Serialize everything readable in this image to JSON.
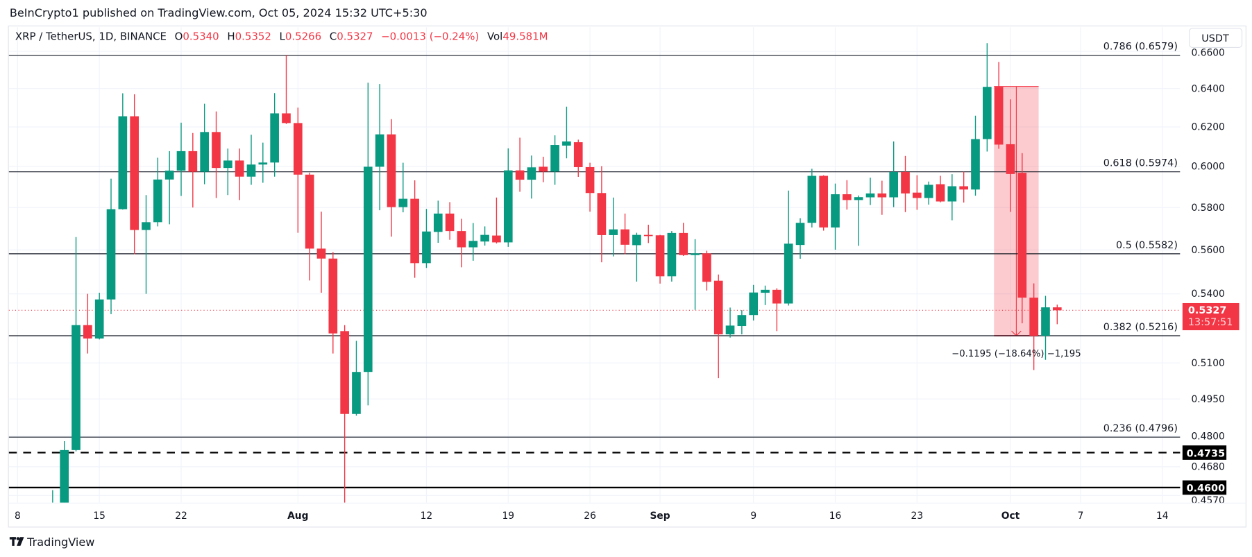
{
  "header": {
    "published": "BeInCrypto1 published on TradingView.com, Oct 05, 2024 15:32 UTC+5:30"
  },
  "legend": {
    "symbol": "XRP / TetherUS, 1D, BINANCE",
    "o_label": "O",
    "o_value": "0.5340",
    "h_label": "H",
    "h_value": "0.5352",
    "l_label": "L",
    "l_value": "0.5266",
    "c_label": "C",
    "c_value": "0.5327",
    "change": "−0.0013 (−0.24%)",
    "vol_label": "Vol",
    "vol_value": "49.581M"
  },
  "currency_button": "USDT",
  "footer": {
    "brand": "TradingView"
  },
  "colors": {
    "up": "#089981",
    "down": "#F23645",
    "text": "#131722",
    "grid": "#f0f3fa",
    "measure_fill": "#F23645"
  },
  "chart_data": {
    "type": "candlestick",
    "title": "",
    "y_scale": "log",
    "ylim": [
      0.4525,
      0.662
    ],
    "xlim": [
      "2024-07-07",
      "2024-10-18"
    ],
    "grid": true,
    "y_ticks": [
      "0.6600",
      "0.6400",
      "0.6200",
      "0.6000",
      "0.5800",
      "0.5600",
      "0.5400",
      "0.5100",
      "0.4950",
      "0.4800",
      "0.4680",
      "0.4570"
    ],
    "x_ticks": [
      {
        "date": "2024-07-08",
        "label": "8",
        "month": false
      },
      {
        "date": "2024-07-15",
        "label": "15",
        "month": false
      },
      {
        "date": "2024-07-22",
        "label": "22",
        "month": false
      },
      {
        "date": "2024-08-01",
        "label": "Aug",
        "month": true
      },
      {
        "date": "2024-08-12",
        "label": "12",
        "month": false
      },
      {
        "date": "2024-08-19",
        "label": "19",
        "month": false
      },
      {
        "date": "2024-08-26",
        "label": "26",
        "month": false
      },
      {
        "date": "2024-09-01",
        "label": "Sep",
        "month": true
      },
      {
        "date": "2024-09-09",
        "label": "9",
        "month": false
      },
      {
        "date": "2024-09-16",
        "label": "16",
        "month": false
      },
      {
        "date": "2024-09-23",
        "label": "23",
        "month": false
      },
      {
        "date": "2024-10-01",
        "label": "Oct",
        "month": true
      },
      {
        "date": "2024-10-07",
        "label": "7",
        "month": false
      },
      {
        "date": "2024-10-14",
        "label": "14",
        "month": false
      }
    ],
    "fib_levels": [
      {
        "ratio": "0.786",
        "price": 0.6579,
        "label": "0.786 (0.6579)"
      },
      {
        "ratio": "0.618",
        "price": 0.5974,
        "label": "0.618 (0.5974)"
      },
      {
        "ratio": "0.5",
        "price": 0.5582,
        "label": "0.5 (0.5582)"
      },
      {
        "ratio": "0.382",
        "price": 0.5216,
        "label": "0.382 (0.5216)"
      },
      {
        "ratio": "0.236",
        "price": 0.4796,
        "label": "0.236 (0.4796)"
      }
    ],
    "horizontal_lines": [
      {
        "price": 0.4735,
        "style": "dashed",
        "label": "0.4735"
      },
      {
        "price": 0.46,
        "style": "solid",
        "label": "0.4600"
      }
    ],
    "last_price": {
      "price": 0.5327,
      "label": "0.5327",
      "countdown": "13:57:51"
    },
    "measure": {
      "from_date": "2024-09-30",
      "to_date": "2024-10-03",
      "from_price": 0.6411,
      "to_price": 0.5216,
      "label": "−0.1195 (−18.64%) −1,195"
    },
    "candles": [
      [
        "2024-07-11",
        0.428,
        0.459,
        0.42,
        0.435
      ],
      [
        "2024-07-12",
        0.435,
        0.478,
        0.43,
        0.4745
      ],
      [
        "2024-07-13",
        0.4745,
        0.566,
        0.474,
        0.5262
      ],
      [
        "2024-07-14",
        0.5262,
        0.54,
        0.514,
        0.5204
      ],
      [
        "2024-07-15",
        0.5204,
        0.5405,
        0.52,
        0.5375
      ],
      [
        "2024-07-16",
        0.5375,
        0.594,
        0.531,
        0.5792
      ],
      [
        "2024-07-17",
        0.5792,
        0.6375,
        0.579,
        0.6255
      ],
      [
        "2024-07-18",
        0.6255,
        0.637,
        0.558,
        0.5693
      ],
      [
        "2024-07-19",
        0.5693,
        0.586,
        0.54,
        0.573
      ],
      [
        "2024-07-20",
        0.573,
        0.6044,
        0.571,
        0.5936
      ],
      [
        "2024-07-21",
        0.5936,
        0.6077,
        0.572,
        0.598
      ],
      [
        "2024-07-22",
        0.598,
        0.6222,
        0.5856,
        0.6077
      ],
      [
        "2024-07-23",
        0.6077,
        0.6169,
        0.58,
        0.5974
      ],
      [
        "2024-07-24",
        0.5974,
        0.632,
        0.5913,
        0.6174
      ],
      [
        "2024-07-25",
        0.6174,
        0.628,
        0.5846,
        0.5993
      ],
      [
        "2024-07-26",
        0.5993,
        0.609,
        0.586,
        0.603
      ],
      [
        "2024-07-27",
        0.603,
        0.609,
        0.5836,
        0.595
      ],
      [
        "2024-07-28",
        0.595,
        0.616,
        0.591,
        0.601
      ],
      [
        "2024-07-29",
        0.601,
        0.612,
        0.592,
        0.602
      ],
      [
        "2024-07-30",
        0.602,
        0.6376,
        0.595,
        0.627
      ],
      [
        "2024-07-31",
        0.627,
        0.658,
        0.6215,
        0.622
      ],
      [
        "2024-08-01",
        0.622,
        0.63,
        0.568,
        0.596
      ],
      [
        "2024-08-02",
        0.596,
        0.597,
        0.546,
        0.5606
      ],
      [
        "2024-08-03",
        0.5606,
        0.578,
        0.5405,
        0.556
      ],
      [
        "2024-08-04",
        0.556,
        0.559,
        0.514,
        0.5226
      ],
      [
        "2024-08-05",
        0.5236,
        0.5262,
        0.43,
        0.4889
      ],
      [
        "2024-08-06",
        0.4889,
        0.5194,
        0.4882,
        0.5062
      ],
      [
        "2024-08-07",
        0.5062,
        0.6431,
        0.4924,
        0.5999
      ],
      [
        "2024-08-08",
        0.5999,
        0.6424,
        0.5787,
        0.6162
      ],
      [
        "2024-08-09",
        0.6162,
        0.624,
        0.5662,
        0.5802
      ],
      [
        "2024-08-10",
        0.5802,
        0.6019,
        0.5777,
        0.5842
      ],
      [
        "2024-08-11",
        0.5842,
        0.5932,
        0.5472,
        0.5539
      ],
      [
        "2024-08-12",
        0.5539,
        0.5793,
        0.5517,
        0.5686
      ],
      [
        "2024-08-13",
        0.5684,
        0.5833,
        0.5633,
        0.5771
      ],
      [
        "2024-08-14",
        0.5771,
        0.5826,
        0.5647,
        0.5688
      ],
      [
        "2024-08-15",
        0.5688,
        0.5746,
        0.552,
        0.5612
      ],
      [
        "2024-08-16",
        0.5612,
        0.5726,
        0.555,
        0.5642
      ],
      [
        "2024-08-17",
        0.5639,
        0.571,
        0.562,
        0.567
      ],
      [
        "2024-08-18",
        0.5667,
        0.5848,
        0.563,
        0.5635
      ],
      [
        "2024-08-19",
        0.5635,
        0.6091,
        0.5614,
        0.5981
      ],
      [
        "2024-08-20",
        0.5981,
        0.6145,
        0.5876,
        0.5935
      ],
      [
        "2024-08-21",
        0.5935,
        0.6055,
        0.5843,
        0.5996
      ],
      [
        "2024-08-22",
        0.5999,
        0.6049,
        0.5923,
        0.5975
      ],
      [
        "2024-08-23",
        0.5975,
        0.6157,
        0.591,
        0.6108
      ],
      [
        "2024-08-24",
        0.6105,
        0.6305,
        0.6041,
        0.6126
      ],
      [
        "2024-08-25",
        0.6122,
        0.6135,
        0.5949,
        0.5997
      ],
      [
        "2024-08-26",
        0.5997,
        0.6019,
        0.578,
        0.587
      ],
      [
        "2024-08-27",
        0.587,
        0.6002,
        0.5543,
        0.5669
      ],
      [
        "2024-08-28",
        0.5669,
        0.5848,
        0.557,
        0.5696
      ],
      [
        "2024-08-29",
        0.5696,
        0.5771,
        0.558,
        0.5624
      ],
      [
        "2024-08-30",
        0.5622,
        0.568,
        0.5455,
        0.567
      ],
      [
        "2024-08-31",
        0.567,
        0.5718,
        0.5632,
        0.5665
      ],
      [
        "2024-09-01",
        0.5668,
        0.567,
        0.5446,
        0.5479
      ],
      [
        "2024-09-02",
        0.5479,
        0.5688,
        0.5455,
        0.5679
      ],
      [
        "2024-09-03",
        0.5679,
        0.5727,
        0.5572,
        0.5576
      ],
      [
        "2024-09-04",
        0.5576,
        0.565,
        0.5329,
        0.5584
      ],
      [
        "2024-09-05",
        0.5584,
        0.5596,
        0.5415,
        0.5454
      ],
      [
        "2024-09-06",
        0.5459,
        0.5487,
        0.5036,
        0.5222
      ],
      [
        "2024-09-07",
        0.5222,
        0.5339,
        0.5208,
        0.526
      ],
      [
        "2024-09-08",
        0.5258,
        0.5328,
        0.5222,
        0.5306
      ],
      [
        "2024-09-09",
        0.5306,
        0.544,
        0.5282,
        0.5406
      ],
      [
        "2024-09-10",
        0.5405,
        0.5437,
        0.535,
        0.5418
      ],
      [
        "2024-09-11",
        0.5418,
        0.5425,
        0.5236,
        0.5357
      ],
      [
        "2024-09-12",
        0.5357,
        0.5882,
        0.5348,
        0.5629
      ],
      [
        "2024-09-13",
        0.5623,
        0.5749,
        0.5559,
        0.5727
      ],
      [
        "2024-09-14",
        0.5727,
        0.5989,
        0.5705,
        0.5954
      ],
      [
        "2024-09-15",
        0.5954,
        0.5957,
        0.569,
        0.5705
      ],
      [
        "2024-09-16",
        0.5705,
        0.5916,
        0.5601,
        0.5864
      ],
      [
        "2024-09-17",
        0.5864,
        0.5933,
        0.579,
        0.5836
      ],
      [
        "2024-09-18",
        0.5836,
        0.5858,
        0.5619,
        0.585
      ],
      [
        "2024-09-19",
        0.5849,
        0.5945,
        0.5812,
        0.5868
      ],
      [
        "2024-09-20",
        0.5868,
        0.593,
        0.5765,
        0.5849
      ],
      [
        "2024-09-21",
        0.5849,
        0.6126,
        0.5802,
        0.5973
      ],
      [
        "2024-09-22",
        0.5973,
        0.6053,
        0.5778,
        0.5868
      ],
      [
        "2024-09-23",
        0.5872,
        0.5957,
        0.5789,
        0.5846
      ],
      [
        "2024-09-24",
        0.5846,
        0.5926,
        0.5814,
        0.591
      ],
      [
        "2024-09-25",
        0.5913,
        0.5954,
        0.5825,
        0.5829
      ],
      [
        "2024-09-26",
        0.5829,
        0.5962,
        0.5739,
        0.5903
      ],
      [
        "2024-09-27",
        0.5903,
        0.5974,
        0.5824,
        0.5887
      ],
      [
        "2024-09-28",
        0.5887,
        0.6258,
        0.5857,
        0.6138
      ],
      [
        "2024-09-29",
        0.6138,
        0.6645,
        0.6075,
        0.6409
      ],
      [
        "2024-09-30",
        0.6409,
        0.6543,
        0.6089,
        0.611
      ],
      [
        "2024-10-01",
        0.6112,
        0.6343,
        0.5779,
        0.5963
      ],
      [
        "2024-10-02",
        0.5969,
        0.6067,
        0.527,
        0.5383
      ],
      [
        "2024-10-03",
        0.5383,
        0.5447,
        0.507,
        0.5216
      ],
      [
        "2024-10-04",
        0.5216,
        0.5391,
        0.5113,
        0.534
      ],
      [
        "2024-10-05",
        0.534,
        0.5352,
        0.5266,
        0.5327
      ]
    ]
  }
}
